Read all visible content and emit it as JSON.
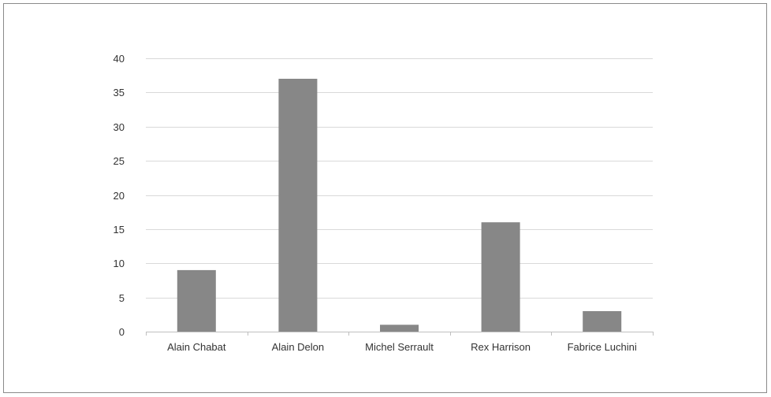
{
  "chart_data": {
    "type": "bar",
    "categories": [
      "Alain Chabat",
      "Alain Delon",
      "Michel Serrault",
      "Rex Harrison",
      "Fabrice Luchini"
    ],
    "values": [
      9,
      37,
      1,
      16,
      3
    ],
    "title": "",
    "xlabel": "",
    "ylabel": "",
    "ylim": [
      0,
      40
    ],
    "yticks": [
      "0",
      "5",
      "10",
      "15",
      "20",
      "25",
      "30",
      "35",
      "40"
    ],
    "grid": true,
    "legend": "none",
    "bar_color": "#878787",
    "grid_color": "#d9d9d9",
    "axis_color": "#bfbfbf"
  }
}
